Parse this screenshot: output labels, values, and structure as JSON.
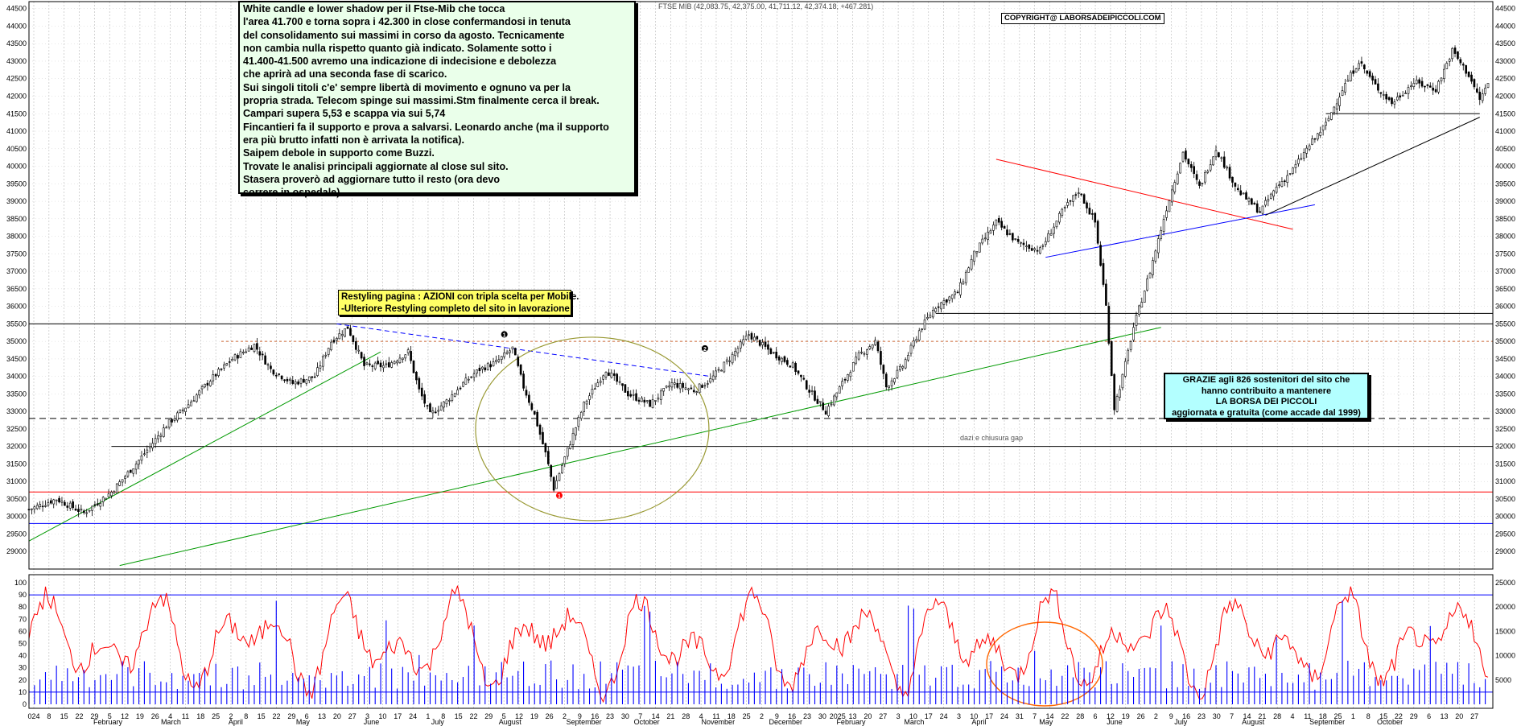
{
  "ticker_line": "FTSE MIB (42,083.75, 42,375.00, 41,711.12, 42,374.18, +467.281)",
  "copyright": "COPYRIGHT@ LABORSADEIPICCOLI.COM",
  "comment_box": {
    "lines": [
      "White candle e lower shadow per il Ftse-Mib che tocca",
      "l'area 41.700 e torna sopra i 42.300 in close  confermandosi in tenuta",
      "del consolidamento sui massimi in corso da agosto. Tecnicamente",
      "non cambia nulla rispetto quanto già indicato. Solamente sotto i",
      "41.400-41.500 avremo una indicazione di indecisione e debolezza",
      "che aprirà ad una seconda fase di scarico.",
      "Sui singoli titoli c'e' sempre libertà di movimento e ognuno va per la",
      "propria strada. Telecom spinge sui massimi.Stm finalmente cerca il break.",
      "Campari supera 5,53 e scappa via sui 5,74",
      "Fincantieri fa il supporto e prova a salvarsi. Leonardo anche (ma il supporto",
      "era più brutto infatti non è arrivata la notifica).",
      "Saipem debole in supporto come Buzzi.",
      "Trovate le analisi principali aggiornate al close sul sito.",
      "Stasera proverò ad aggiornare tutto il resto (ora devo",
      "correre in ospedale)."
    ]
  },
  "restyle_box": {
    "lines": [
      "Restyling pagina : AZIONI con tripla scelta per Mobile.",
      "-Ulteriore Restyling completo del sito in lavorazione"
    ]
  },
  "thanks_box": {
    "lines": [
      "GRAZIE agli 826  sostenitori del sito che",
      "hanno contribuito a mantenere",
      "LA BORSA DEI PICCOLI",
      "aggiornata e gratuita (come accade dal 1999)"
    ]
  },
  "annotation_dazi": "dazi e chiusura gap",
  "markers": [
    "1",
    "2",
    "1"
  ],
  "colors": {
    "candle": "#000000",
    "red_trend": "#ff0000",
    "blue_trend": "#0000ff",
    "green_trend": "#009900",
    "ellipse": "#999933",
    "ellipse_orange": "#ff6600",
    "oscillator": "#ff0000",
    "volume": "#0000ff",
    "comment_bg": "#eaffea",
    "restyle_bg": "#ffff66",
    "thanks_bg": "#b3ffff"
  },
  "chart_data": [
    {
      "type": "candlestick",
      "title": "",
      "y_ticks": [
        29000,
        29500,
        30000,
        30500,
        31000,
        31500,
        32000,
        32500,
        33000,
        33500,
        34000,
        34500,
        35000,
        35500,
        36000,
        36500,
        37000,
        37500,
        38000,
        38500,
        39000,
        39500,
        40000,
        40500,
        41000,
        41500,
        42000,
        42500,
        43000,
        43500,
        44000,
        44500
      ],
      "ylim": [
        28500,
        44700
      ],
      "grid": true,
      "horizontal_levels": [
        29800,
        30700,
        32000,
        32800,
        35000,
        35500,
        35800,
        41500
      ],
      "close_path": [
        [
          0,
          30200
        ],
        [
          10,
          30500
        ],
        [
          20,
          30100
        ],
        [
          30,
          30700
        ],
        [
          40,
          31600
        ],
        [
          50,
          32600
        ],
        [
          58,
          33200
        ],
        [
          66,
          33900
        ],
        [
          74,
          34500
        ],
        [
          82,
          34900
        ],
        [
          88,
          34200
        ],
        [
          96,
          33800
        ],
        [
          104,
          34000
        ],
        [
          110,
          35000
        ],
        [
          116,
          35400
        ],
        [
          122,
          34300
        ],
        [
          130,
          34300
        ],
        [
          138,
          34700
        ],
        [
          142,
          33600
        ],
        [
          146,
          32900
        ],
        [
          152,
          33300
        ],
        [
          158,
          33800
        ],
        [
          164,
          34200
        ],
        [
          170,
          34400
        ],
        [
          176,
          34800
        ],
        [
          180,
          33700
        ],
        [
          184,
          32900
        ],
        [
          188,
          31800
        ],
        [
          191,
          30800
        ],
        [
          196,
          31900
        ],
        [
          202,
          33200
        ],
        [
          210,
          34200
        ],
        [
          218,
          33500
        ],
        [
          226,
          33200
        ],
        [
          234,
          33800
        ],
        [
          242,
          33600
        ],
        [
          248,
          33900
        ],
        [
          256,
          34600
        ],
        [
          262,
          35200
        ],
        [
          270,
          34700
        ],
        [
          278,
          34300
        ],
        [
          284,
          33600
        ],
        [
          290,
          33000
        ],
        [
          296,
          33800
        ],
        [
          302,
          34600
        ],
        [
          308,
          35000
        ],
        [
          312,
          33700
        ],
        [
          318,
          34300
        ],
        [
          324,
          35300
        ],
        [
          330,
          36000
        ],
        [
          338,
          36400
        ],
        [
          344,
          37500
        ],
        [
          352,
          38400
        ],
        [
          360,
          37800
        ],
        [
          368,
          37600
        ],
        [
          376,
          38700
        ],
        [
          382,
          39300
        ],
        [
          388,
          38400
        ],
        [
          392,
          36000
        ],
        [
          395,
          33100
        ],
        [
          398,
          34000
        ],
        [
          402,
          35400
        ],
        [
          408,
          37000
        ],
        [
          414,
          38800
        ],
        [
          420,
          40400
        ],
        [
          426,
          39400
        ],
        [
          432,
          40500
        ],
        [
          440,
          39300
        ],
        [
          448,
          38700
        ],
        [
          454,
          39400
        ],
        [
          460,
          39900
        ],
        [
          466,
          40600
        ],
        [
          472,
          41200
        ],
        [
          478,
          42200
        ],
        [
          484,
          43000
        ],
        [
          490,
          42300
        ],
        [
          496,
          41800
        ],
        [
          504,
          42400
        ],
        [
          512,
          42200
        ],
        [
          518,
          43300
        ],
        [
          524,
          42600
        ],
        [
          528,
          41900
        ],
        [
          531,
          42370
        ]
      ]
    },
    {
      "type": "line",
      "title": "",
      "y_ticks": [
        0,
        10,
        20,
        30,
        40,
        50,
        60,
        70,
        80,
        90,
        100
      ],
      "ylim": [
        0,
        100
      ],
      "levels": [
        10,
        90
      ]
    },
    {
      "type": "bar",
      "title": "",
      "y_ticks": [
        5000,
        10000,
        15000,
        20000,
        25000
      ],
      "ylim": [
        0,
        25000
      ]
    }
  ],
  "x_axis": {
    "labels": [
      "024",
      "8",
      "15",
      "22",
      "29",
      "5",
      "12",
      "19",
      "26",
      "4",
      "11",
      "18",
      "25",
      "2",
      "8",
      "15",
      "22",
      "29",
      "6",
      "13",
      "20",
      "27",
      "3",
      "10",
      "17",
      "24",
      "1",
      "8",
      "15",
      "22",
      "29",
      "5",
      "12",
      "19",
      "26",
      "2",
      "9",
      "16",
      "23",
      "30",
      "7",
      "14",
      "21",
      "28",
      "4",
      "11",
      "18",
      "25",
      "2",
      "9",
      "16",
      "23",
      "30",
      "2025",
      "13",
      "20",
      "27",
      "3",
      "10",
      "17",
      "24",
      "3",
      "10",
      "17",
      "24",
      "31",
      "7",
      "14",
      "22",
      "28",
      "6",
      "12",
      "19",
      "26",
      "2",
      "9",
      "16",
      "23",
      "30",
      "7",
      "14",
      "21",
      "28",
      "4",
      "11",
      "18",
      "25",
      "1",
      "8",
      "15",
      "22",
      "29",
      "6",
      "13",
      "20",
      "27"
    ],
    "months": [
      "February",
      "March",
      "April",
      "May",
      "June",
      "July",
      "August",
      "September",
      "October",
      "November",
      "December",
      "February",
      "March",
      "April",
      "May",
      "June",
      "July",
      "August",
      "September",
      "October"
    ]
  }
}
